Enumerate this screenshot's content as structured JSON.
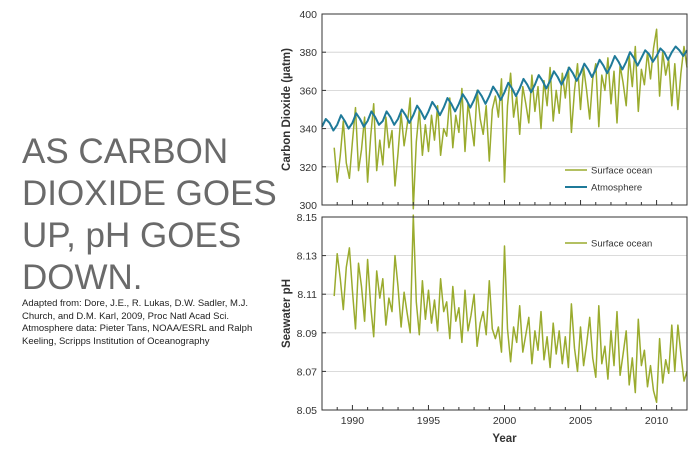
{
  "headline": [
    "AS CARBON",
    "DIOXIDE GOES",
    "UP, pH GOES",
    "DOWN."
  ],
  "credit": [
    "Adapted from: Dore, J.E., R. Lukas, D.W. Sadler, M.J.",
    "Church, and D.M. Karl,  2009,  Proc Natl Acad Sci.",
    "Atmosphere data: Pieter Tans, NOAA/ESRL and Ralph",
    "Keeling, Scripps Institution of Oceanography"
  ],
  "colors": {
    "surface": "#9aab2e",
    "atmosphere": "#1f7a99",
    "frame": "#333333",
    "grid": "#cfcfcf"
  },
  "chart_data": [
    {
      "type": "line",
      "ylabel": "Carbon Dioxide (µatm)",
      "xlabel": "",
      "xlim": [
        1988,
        2012
      ],
      "ylim": [
        300,
        400
      ],
      "yticks": [
        300,
        320,
        340,
        360,
        380,
        400
      ],
      "grid": true,
      "legend": "bottom-right",
      "series": [
        {
          "name": "Surface ocean",
          "color": "#9aab2e",
          "x": [
            1988.8,
            1989.0,
            1989.2,
            1989.4,
            1989.6,
            1989.8,
            1990.0,
            1990.2,
            1990.4,
            1990.6,
            1990.8,
            1991.0,
            1991.2,
            1991.4,
            1991.6,
            1991.8,
            1992.0,
            1992.2,
            1992.4,
            1992.6,
            1992.8,
            1993.0,
            1993.2,
            1993.4,
            1993.6,
            1993.8,
            1994.0,
            1994.2,
            1994.4,
            1994.6,
            1994.8,
            1995.0,
            1995.2,
            1995.4,
            1995.6,
            1995.8,
            1996.0,
            1996.2,
            1996.4,
            1996.6,
            1996.8,
            1997.0,
            1997.2,
            1997.4,
            1997.6,
            1997.8,
            1998.0,
            1998.2,
            1998.4,
            1998.6,
            1998.8,
            1999.0,
            1999.2,
            1999.4,
            1999.6,
            1999.8,
            2000.0,
            2000.2,
            2000.4,
            2000.6,
            2000.8,
            2001.0,
            2001.2,
            2001.4,
            2001.6,
            2001.8,
            2002.0,
            2002.2,
            2002.4,
            2002.6,
            2002.8,
            2003.0,
            2003.2,
            2003.4,
            2003.6,
            2003.8,
            2004.0,
            2004.2,
            2004.4,
            2004.6,
            2004.8,
            2005.0,
            2005.2,
            2005.4,
            2005.6,
            2005.8,
            2006.0,
            2006.2,
            2006.4,
            2006.6,
            2006.8,
            2007.0,
            2007.2,
            2007.4,
            2007.6,
            2007.8,
            2008.0,
            2008.2,
            2008.4,
            2008.6,
            2008.8,
            2009.0,
            2009.2,
            2009.4,
            2009.6,
            2009.8,
            2010.0,
            2010.2,
            2010.4,
            2010.6,
            2010.8,
            2011.0,
            2011.2,
            2011.4,
            2011.6,
            2011.8,
            2012.0
          ],
          "values": [
            330,
            312,
            326,
            344,
            322,
            314,
            333,
            351,
            318,
            329,
            346,
            312,
            336,
            353,
            318,
            334,
            321,
            346,
            330,
            339,
            310,
            327,
            348,
            331,
            342,
            356,
            298,
            333,
            350,
            326,
            342,
            328,
            347,
            334,
            352,
            326,
            340,
            336,
            356,
            330,
            347,
            338,
            361,
            328,
            353,
            343,
            331,
            360,
            345,
            337,
            352,
            323,
            350,
            357,
            346,
            366,
            312,
            352,
            369,
            346,
            357,
            337,
            362,
            353,
            343,
            368,
            349,
            362,
            340,
            365,
            352,
            372,
            344,
            360,
            348,
            369,
            356,
            372,
            338,
            360,
            374,
            350,
            372,
            360,
            345,
            366,
            374,
            341,
            368,
            360,
            377,
            353,
            370,
            343,
            373,
            364,
            352,
            378,
            362,
            383,
            349,
            371,
            363,
            380,
            366,
            382,
            392,
            357,
            380,
            368,
            376,
            352,
            374,
            350,
            369,
            383,
            372
          ]
        },
        {
          "name": "Atmosphere",
          "color": "#1f7a99",
          "x": [
            1988.0,
            1988.25,
            1988.5,
            1988.75,
            1989.0,
            1989.25,
            1989.5,
            1989.75,
            1990.0,
            1990.25,
            1990.5,
            1990.75,
            1991.0,
            1991.25,
            1991.5,
            1991.75,
            1992.0,
            1992.25,
            1992.5,
            1992.75,
            1993.0,
            1993.25,
            1993.5,
            1993.75,
            1994.0,
            1994.25,
            1994.5,
            1994.75,
            1995.0,
            1995.25,
            1995.5,
            1995.75,
            1996.0,
            1996.25,
            1996.5,
            1996.75,
            1997.0,
            1997.25,
            1997.5,
            1997.75,
            1998.0,
            1998.25,
            1998.5,
            1998.75,
            1999.0,
            1999.25,
            1999.5,
            1999.75,
            2000.0,
            2000.25,
            2000.5,
            2000.75,
            2001.0,
            2001.25,
            2001.5,
            2001.75,
            2002.0,
            2002.25,
            2002.5,
            2002.75,
            2003.0,
            2003.25,
            2003.5,
            2003.75,
            2004.0,
            2004.25,
            2004.5,
            2004.75,
            2005.0,
            2005.25,
            2005.5,
            2005.75,
            2006.0,
            2006.25,
            2006.5,
            2006.75,
            2007.0,
            2007.25,
            2007.5,
            2007.75,
            2008.0,
            2008.25,
            2008.5,
            2008.75,
            2009.0,
            2009.25,
            2009.5,
            2009.75,
            2010.0,
            2010.25,
            2010.5,
            2010.75,
            2011.0,
            2011.25,
            2011.5,
            2011.75,
            2012.0
          ],
          "values": [
            341,
            345,
            343,
            339,
            342,
            347,
            344,
            340,
            343,
            348,
            345,
            341,
            344,
            349,
            346,
            342,
            344,
            349,
            346,
            342,
            345,
            350,
            347,
            343,
            347,
            352,
            349,
            345,
            349,
            354,
            351,
            347,
            351,
            356,
            353,
            349,
            353,
            358,
            355,
            351,
            355,
            360,
            357,
            353,
            357,
            362,
            359,
            355,
            359,
            364,
            361,
            357,
            361,
            366,
            363,
            359,
            363,
            368,
            365,
            361,
            365,
            370,
            367,
            363,
            367,
            372,
            369,
            365,
            369,
            374,
            371,
            367,
            371,
            376,
            373,
            369,
            373,
            378,
            375,
            371,
            375,
            380,
            377,
            373,
            377,
            381,
            379,
            375,
            378,
            382,
            380,
            376,
            380,
            383,
            381,
            378,
            381
          ]
        }
      ]
    },
    {
      "type": "line",
      "ylabel": "Seawater pH",
      "xlabel": "Year",
      "xlim": [
        1988,
        2012
      ],
      "ylim": [
        8.05,
        8.15
      ],
      "yticks": [
        8.05,
        8.07,
        8.09,
        8.11,
        8.13,
        8.15
      ],
      "xticks": [
        1990,
        1995,
        2000,
        2005,
        2010
      ],
      "grid": true,
      "legend": "top-right",
      "series": [
        {
          "name": "Surface ocean",
          "color": "#9aab2e",
          "x": [
            1988.8,
            1989.0,
            1989.2,
            1989.4,
            1989.6,
            1989.8,
            1990.0,
            1990.2,
            1990.4,
            1990.6,
            1990.8,
            1991.0,
            1991.2,
            1991.4,
            1991.6,
            1991.8,
            1992.0,
            1992.2,
            1992.4,
            1992.6,
            1992.8,
            1993.0,
            1993.2,
            1993.4,
            1993.6,
            1993.8,
            1994.0,
            1994.2,
            1994.4,
            1994.6,
            1994.8,
            1995.0,
            1995.2,
            1995.4,
            1995.6,
            1995.8,
            1996.0,
            1996.2,
            1996.4,
            1996.6,
            1996.8,
            1997.0,
            1997.2,
            1997.4,
            1997.6,
            1997.8,
            1998.0,
            1998.2,
            1998.4,
            1998.6,
            1998.8,
            1999.0,
            1999.2,
            1999.4,
            1999.6,
            1999.8,
            2000.0,
            2000.2,
            2000.4,
            2000.6,
            2000.8,
            2001.0,
            2001.2,
            2001.4,
            2001.6,
            2001.8,
            2002.0,
            2002.2,
            2002.4,
            2002.6,
            2002.8,
            2003.0,
            2003.2,
            2003.4,
            2003.6,
            2003.8,
            2004.0,
            2004.2,
            2004.4,
            2004.6,
            2004.8,
            2005.0,
            2005.2,
            2005.4,
            2005.6,
            2005.8,
            2006.0,
            2006.2,
            2006.4,
            2006.6,
            2006.8,
            2007.0,
            2007.2,
            2007.4,
            2007.6,
            2007.8,
            2008.0,
            2008.2,
            2008.4,
            2008.6,
            2008.8,
            2009.0,
            2009.2,
            2009.4,
            2009.6,
            2009.8,
            2010.0,
            2010.2,
            2010.4,
            2010.6,
            2010.8,
            2011.0,
            2011.2,
            2011.4,
            2011.6,
            2011.8,
            2012.0
          ],
          "values": [
            8.109,
            8.131,
            8.118,
            8.102,
            8.124,
            8.134,
            8.112,
            8.092,
            8.126,
            8.114,
            8.096,
            8.128,
            8.104,
            8.088,
            8.122,
            8.108,
            8.118,
            8.094,
            8.108,
            8.101,
            8.13,
            8.114,
            8.093,
            8.111,
            8.1,
            8.09,
            8.151,
            8.106,
            8.089,
            8.117,
            8.097,
            8.112,
            8.095,
            8.107,
            8.091,
            8.118,
            8.101,
            8.106,
            8.087,
            8.114,
            8.096,
            8.103,
            8.085,
            8.112,
            8.091,
            8.099,
            8.11,
            8.083,
            8.095,
            8.101,
            8.089,
            8.117,
            8.092,
            8.087,
            8.093,
            8.08,
            8.135,
            8.092,
            8.075,
            8.093,
            8.085,
            8.104,
            8.08,
            8.089,
            8.098,
            8.074,
            8.091,
            8.081,
            8.101,
            8.076,
            8.088,
            8.072,
            8.095,
            8.079,
            8.091,
            8.074,
            8.088,
            8.072,
            8.105,
            8.082,
            8.07,
            8.093,
            8.073,
            8.084,
            8.098,
            8.077,
            8.067,
            8.104,
            8.074,
            8.083,
            8.066,
            8.091,
            8.073,
            8.101,
            8.068,
            8.079,
            8.091,
            8.063,
            8.077,
            8.059,
            8.097,
            8.073,
            8.081,
            8.062,
            8.073,
            8.06,
            8.054,
            8.087,
            8.064,
            8.076,
            8.069,
            8.094,
            8.07,
            8.094,
            8.079,
            8.065,
            8.07
          ]
        }
      ]
    }
  ]
}
